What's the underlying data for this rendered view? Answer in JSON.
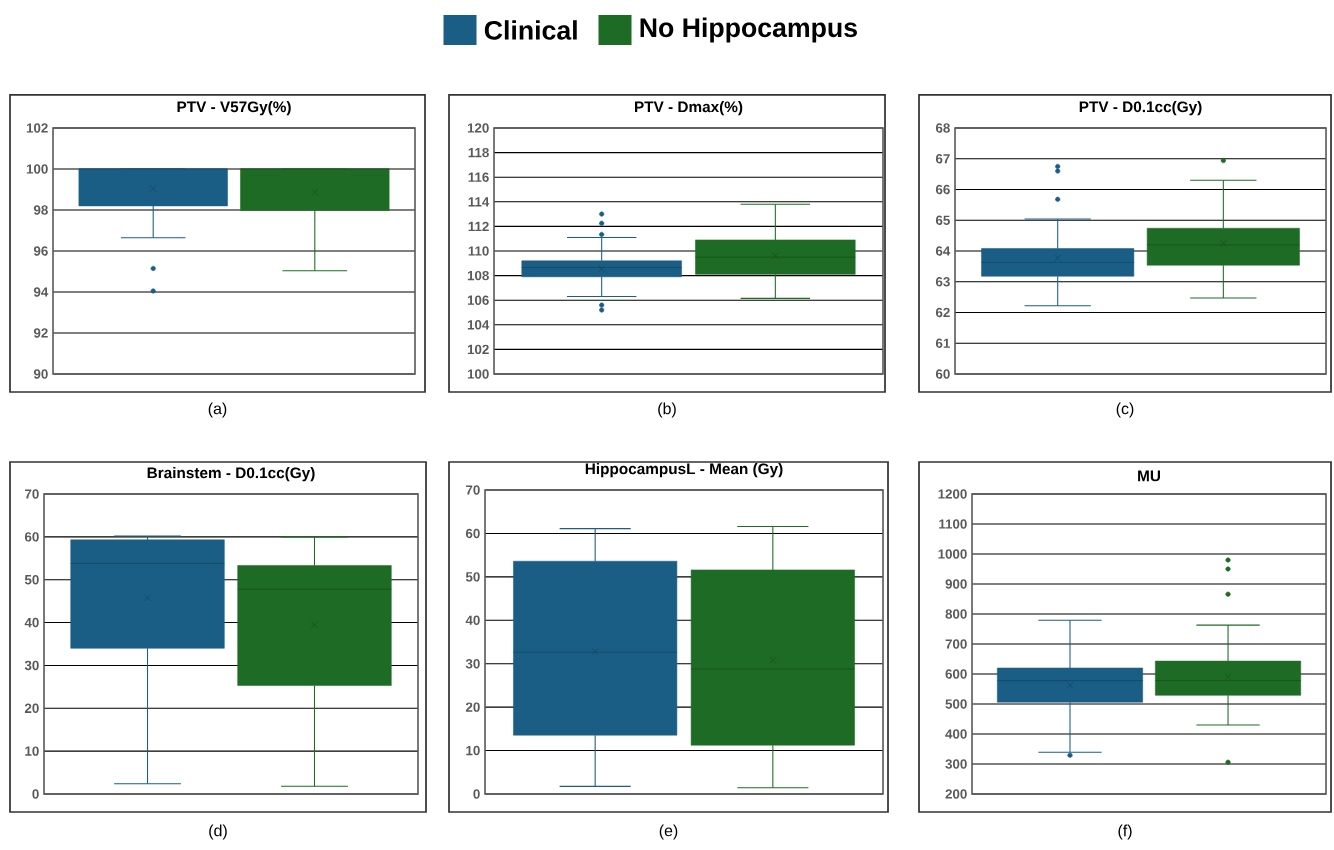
{
  "chart_data": [
    {
      "type": "box",
      "title": "PTV - V57Gy(%)",
      "annotations": [
        "(a)"
      ],
      "categories": [
        null
      ],
      "legend": "top",
      "grid": "y",
      "tick_labels": "y",
      "ylim": [
        90,
        102
      ],
      "yticks": [
        90,
        92,
        94,
        96,
        98,
        100,
        102
      ],
      "series": [
        {
          "name": "Clinical",
          "color": "#1a5e85",
          "boxes": [
            {
              "low": 96.65,
              "q1": 98.2,
              "median": 100,
              "q3": 100,
              "high": 100,
              "mean": 99.04,
              "outliers": [
                95.15,
                94.05
              ]
            }
          ]
        },
        {
          "name": "No Hippocampus",
          "color": "#1e6b25",
          "boxes": [
            {
              "low": 95.04,
              "q1": 97.98,
              "median": 100,
              "q3": 100,
              "high": 100,
              "mean": 98.86
            }
          ]
        }
      ]
    },
    {
      "type": "box",
      "title": "PTV - Dmax(%)",
      "annotations": [
        "(b)"
      ],
      "categories": [
        null
      ],
      "grid": "y",
      "tick_labels": "y",
      "ylim": [
        100,
        120
      ],
      "yticks": [
        100,
        102,
        104,
        106,
        108,
        110,
        112,
        114,
        116,
        118,
        120
      ],
      "series": [
        {
          "color": "#1a5e85",
          "boxes": [
            {
              "low": 106.3,
              "q1": 107.9,
              "median": 108.65,
              "q3": 109.2,
              "high": 111.1,
              "mean": 108.55,
              "outliers": [
                113.0,
                112.25,
                111.35,
                105.6,
                105.2
              ]
            }
          ]
        },
        {
          "color": "#1e6b25",
          "boxes": [
            {
              "low": 106.15,
              "q1": 108.1,
              "median": 109.5,
              "q3": 110.9,
              "high": 113.8,
              "mean": 109.6
            }
          ]
        }
      ]
    },
    {
      "type": "box",
      "title": "PTV - D0.1cc(Gy)",
      "annotations": [
        "(c)"
      ],
      "categories": [
        null
      ],
      "grid": "y",
      "tick_labels": "y",
      "ylim": [
        60,
        68
      ],
      "yticks": [
        60,
        61,
        62,
        63,
        64,
        65,
        66,
        67,
        68
      ],
      "series": [
        {
          "color": "#1a5e85",
          "boxes": [
            {
              "low": 62.22,
              "q1": 63.18,
              "median": 63.63,
              "q3": 64.08,
              "high": 65.04,
              "mean": 63.77,
              "outliers": [
                66.75,
                66.6,
                65.68
              ]
            }
          ]
        },
        {
          "color": "#1e6b25",
          "boxes": [
            {
              "low": 62.47,
              "q1": 63.54,
              "median": 64.2,
              "q3": 64.74,
              "high": 66.3,
              "mean": 64.25,
              "outliers": [
                66.94
              ]
            }
          ]
        }
      ]
    },
    {
      "type": "box",
      "title": "Brainstem - D0.1cc(Gy)",
      "annotations": [
        "(d)"
      ],
      "categories": [
        null
      ],
      "grid": "y",
      "tick_labels": "y",
      "ylim": [
        0,
        70
      ],
      "yticks": [
        0,
        10,
        20,
        30,
        40,
        50,
        60,
        70
      ],
      "series": [
        {
          "color": "#1a5e85",
          "boxes": [
            {
              "low": 2.4,
              "q1": 34.0,
              "median": 53.8,
              "q3": 59.3,
              "high": 60.2,
              "mean": 45.8
            }
          ]
        },
        {
          "color": "#1e6b25",
          "boxes": [
            {
              "low": 1.8,
              "q1": 25.3,
              "median": 47.8,
              "q3": 53.3,
              "high": 60.0,
              "mean": 39.5
            }
          ]
        }
      ]
    },
    {
      "type": "box",
      "title": "HippocampusL - Mean (Gy)",
      "annotations": [
        "(e)"
      ],
      "categories": [
        null
      ],
      "grid": "y",
      "tick_labels": "y",
      "ylim": [
        0,
        70
      ],
      "yticks": [
        0,
        10,
        20,
        30,
        40,
        50,
        60,
        70
      ],
      "series": [
        {
          "color": "#1a5e85",
          "boxes": [
            {
              "low": 1.75,
              "q1": 13.55,
              "median": 32.65,
              "q3": 53.6,
              "high": 61.1,
              "mean": 32.8
            }
          ]
        },
        {
          "color": "#1e6b25",
          "boxes": [
            {
              "low": 1.45,
              "q1": 11.25,
              "median": 28.8,
              "q3": 51.6,
              "high": 61.6,
              "mean": 30.8
            }
          ]
        }
      ]
    },
    {
      "type": "box",
      "title": "MU",
      "annotations": [
        "(f)"
      ],
      "categories": [
        null
      ],
      "grid": "y",
      "tick_labels": "y",
      "ylim": [
        200,
        1200
      ],
      "yticks": [
        200,
        300,
        400,
        500,
        600,
        700,
        800,
        900,
        1000,
        1100,
        1200
      ],
      "series": [
        {
          "color": "#1a5e85",
          "boxes": [
            {
              "low": 339,
              "q1": 506,
              "median": 578,
              "q3": 620,
              "high": 779,
              "mean": 563,
              "outliers": [
                329
              ]
            }
          ]
        },
        {
          "color": "#1e6b25",
          "boxes": [
            {
              "low": 430,
              "q1": 529,
              "median": 578,
              "q3": 643,
              "high": 763,
              "mean": 591,
              "outliers": [
                980,
                950,
                866,
                306
              ]
            }
          ]
        }
      ]
    }
  ]
}
